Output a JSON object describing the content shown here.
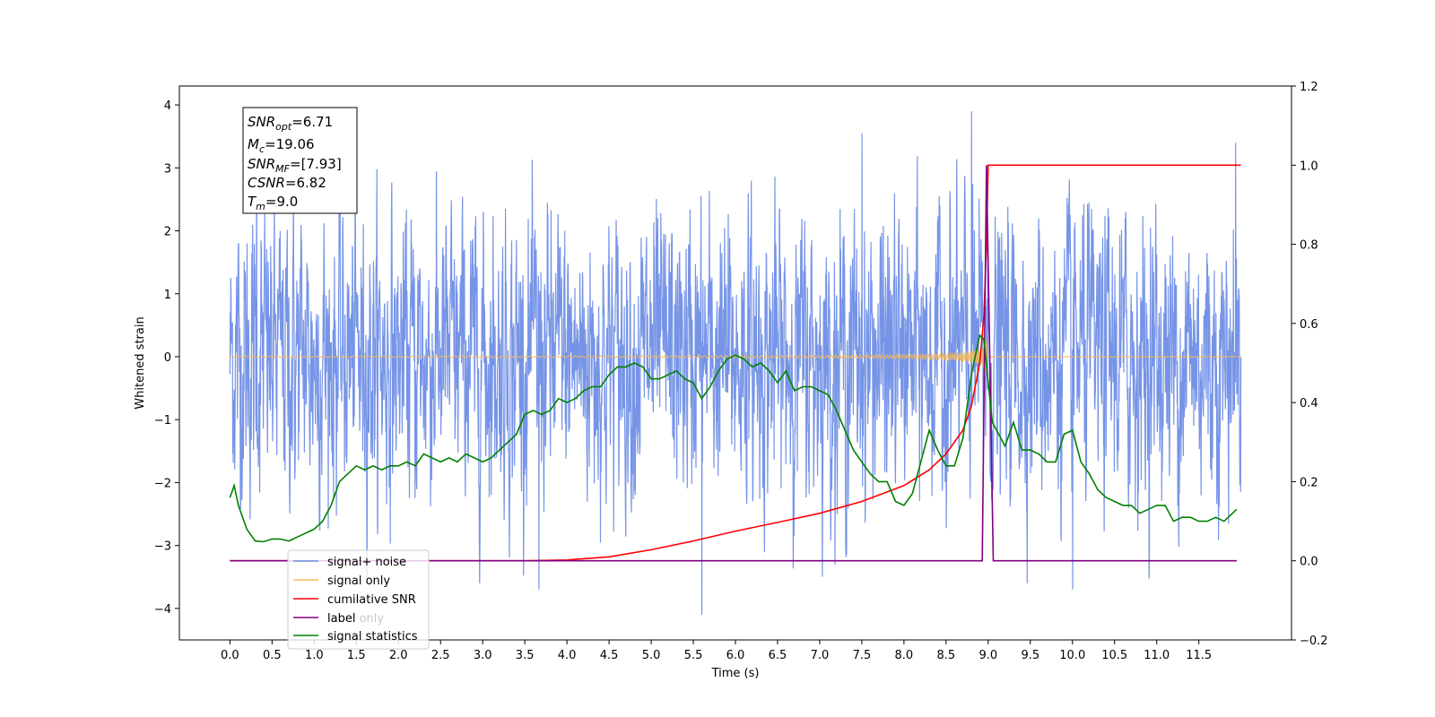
{
  "chart_data": {
    "type": "line",
    "xlabel": "Time (s)",
    "ylabel": "Whitened strain",
    "xlim": [
      -0.6,
      12.6
    ],
    "ylim": [
      -4.5,
      4.3
    ],
    "y2lim": [
      -0.2,
      1.2
    ],
    "grid": false,
    "legend_position": "bottom-left",
    "x_ticks": [
      "0.0",
      "0.5",
      "1.0",
      "1.5",
      "2.0",
      "2.5",
      "3.0",
      "3.5",
      "4.0",
      "4.5",
      "5.0",
      "5.5",
      "6.0",
      "6.5",
      "7.0",
      "7.5",
      "8.0",
      "8.5",
      "9.0",
      "9.5",
      "10.0",
      "10.5",
      "11.0",
      "11.5"
    ],
    "y_ticks": [
      "-4",
      "-3",
      "-2",
      "-1",
      "0",
      "1",
      "2",
      "3",
      "4"
    ],
    "y2_ticks": [
      "-0.2",
      "0.0",
      "0.2",
      "0.4",
      "0.6",
      "0.8",
      "1.0",
      "1.2"
    ],
    "stats": {
      "snr_opt": {
        "base": "SNR",
        "sub": "opt",
        "value": "=6.71"
      },
      "mc": {
        "base": "M",
        "sub": "c",
        "value": "=19.06"
      },
      "snr_mf": {
        "base": "SNR",
        "sub": "MF",
        "value": "=[7.93]"
      },
      "csnr": {
        "base": "CSNR",
        "value": "=6.82"
      },
      "tm": {
        "base": "T",
        "sub": "m",
        "value": "=9.0"
      }
    },
    "series": [
      {
        "name": "signal+ noise",
        "color": "#6f8ee6",
        "axis": "left",
        "description": "whitened noise, amplitude about +-3, spikes up to 3.9 and down to -4.1",
        "x_range": [
          0.0,
          12.0
        ]
      },
      {
        "name": "signal only",
        "color": "#f5b85a",
        "axis": "left",
        "description": "chirp growing to amplitude about 0.6 at t=8.95, zero after merger",
        "chirp_end": 8.98
      },
      {
        "name": "cumilative SNR",
        "color": "#ff0000",
        "axis": "right",
        "x": [
          0.0,
          3.0,
          3.5,
          4.0,
          4.5,
          5.0,
          5.5,
          6.0,
          6.5,
          7.0,
          7.5,
          8.0,
          8.3,
          8.5,
          8.7,
          8.8,
          8.9,
          8.95,
          8.98,
          9.0,
          9.5,
          10.0,
          11.0,
          12.0
        ],
        "values": [
          0.0,
          0.0,
          0.0,
          0.002,
          0.01,
          0.028,
          0.05,
          0.075,
          0.097,
          0.12,
          0.15,
          0.19,
          0.23,
          0.27,
          0.33,
          0.39,
          0.5,
          0.62,
          0.8,
          1.0,
          1.0,
          1.0,
          1.0,
          1.0
        ]
      },
      {
        "name": "label",
        "color": "#800080",
        "axis": "right",
        "x": [
          0.0,
          8.93,
          8.98,
          9.06,
          11.95
        ],
        "values": [
          0.0,
          0.0,
          1.0,
          0.0,
          0.0
        ]
      },
      {
        "name": "label only",
        "color": "#800080",
        "axis": "right",
        "description": "hidden behind label line"
      },
      {
        "name": "signal statistics",
        "color": "#008000",
        "axis": "right",
        "x": [
          0.0,
          0.05,
          0.1,
          0.15,
          0.2,
          0.3,
          0.4,
          0.5,
          0.6,
          0.7,
          0.8,
          0.9,
          1.0,
          1.1,
          1.2,
          1.3,
          1.4,
          1.5,
          1.6,
          1.7,
          1.8,
          1.9,
          2.0,
          2.1,
          2.2,
          2.3,
          2.4,
          2.5,
          2.6,
          2.7,
          2.8,
          2.9,
          3.0,
          3.1,
          3.2,
          3.3,
          3.4,
          3.5,
          3.6,
          3.7,
          3.8,
          3.9,
          4.0,
          4.1,
          4.2,
          4.3,
          4.4,
          4.5,
          4.6,
          4.7,
          4.8,
          4.9,
          5.0,
          5.1,
          5.2,
          5.3,
          5.4,
          5.5,
          5.6,
          5.7,
          5.8,
          5.9,
          6.0,
          6.1,
          6.2,
          6.3,
          6.4,
          6.5,
          6.6,
          6.7,
          6.8,
          6.9,
          7.0,
          7.1,
          7.2,
          7.3,
          7.4,
          7.5,
          7.6,
          7.7,
          7.8,
          7.9,
          8.0,
          8.1,
          8.2,
          8.3,
          8.4,
          8.5,
          8.6,
          8.7,
          8.8,
          8.9,
          8.95,
          9.0,
          9.05,
          9.1,
          9.2,
          9.3,
          9.4,
          9.5,
          9.6,
          9.7,
          9.8,
          9.9,
          10.0,
          10.1,
          10.2,
          10.3,
          10.4,
          10.5,
          10.6,
          10.7,
          10.8,
          10.9,
          11.0,
          11.1,
          11.2,
          11.3,
          11.4,
          11.5,
          11.6,
          11.7,
          11.8,
          11.9,
          11.95
        ],
        "values": [
          0.16,
          0.19,
          0.14,
          0.11,
          0.08,
          0.05,
          0.048,
          0.055,
          0.055,
          0.05,
          0.06,
          0.07,
          0.08,
          0.1,
          0.14,
          0.2,
          0.22,
          0.24,
          0.23,
          0.24,
          0.23,
          0.24,
          0.24,
          0.25,
          0.24,
          0.27,
          0.26,
          0.25,
          0.26,
          0.25,
          0.27,
          0.26,
          0.25,
          0.26,
          0.28,
          0.3,
          0.32,
          0.37,
          0.38,
          0.37,
          0.38,
          0.41,
          0.4,
          0.41,
          0.43,
          0.44,
          0.44,
          0.47,
          0.49,
          0.49,
          0.5,
          0.49,
          0.46,
          0.46,
          0.47,
          0.48,
          0.46,
          0.45,
          0.41,
          0.44,
          0.48,
          0.51,
          0.52,
          0.51,
          0.49,
          0.5,
          0.48,
          0.45,
          0.48,
          0.43,
          0.44,
          0.44,
          0.43,
          0.42,
          0.38,
          0.33,
          0.28,
          0.25,
          0.22,
          0.2,
          0.2,
          0.15,
          0.14,
          0.17,
          0.25,
          0.33,
          0.28,
          0.24,
          0.24,
          0.31,
          0.47,
          0.57,
          0.56,
          0.45,
          0.35,
          0.33,
          0.29,
          0.35,
          0.28,
          0.28,
          0.27,
          0.25,
          0.25,
          0.32,
          0.33,
          0.25,
          0.22,
          0.18,
          0.16,
          0.15,
          0.14,
          0.14,
          0.12,
          0.13,
          0.14,
          0.14,
          0.1,
          0.11,
          0.11,
          0.1,
          0.1,
          0.11,
          0.1,
          0.12,
          0.13
        ]
      }
    ]
  }
}
